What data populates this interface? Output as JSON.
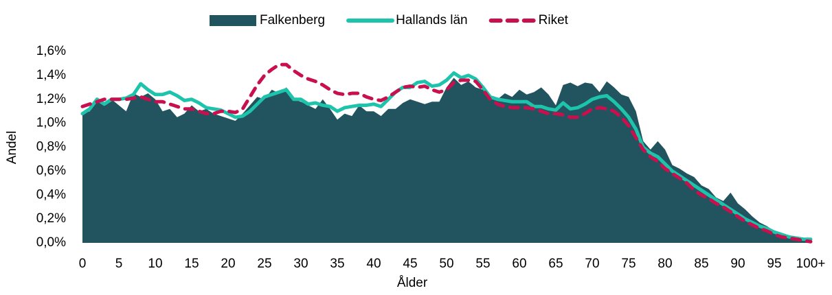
{
  "chart_data": {
    "type": "area",
    "x_label": "Ålder",
    "y_label": "Andel",
    "categories": [
      "0",
      null,
      null,
      null,
      null,
      "5",
      null,
      null,
      null,
      null,
      "10",
      null,
      null,
      null,
      null,
      "15",
      null,
      null,
      null,
      null,
      "20",
      null,
      null,
      null,
      null,
      "25",
      null,
      null,
      null,
      null,
      "30",
      null,
      null,
      null,
      null,
      "35",
      null,
      null,
      null,
      null,
      "40",
      null,
      null,
      null,
      null,
      "45",
      null,
      null,
      null,
      null,
      "50",
      null,
      null,
      null,
      null,
      "55",
      null,
      null,
      null,
      null,
      "60",
      null,
      null,
      null,
      null,
      "65",
      null,
      null,
      null,
      null,
      "70",
      null,
      null,
      null,
      null,
      "75",
      null,
      null,
      null,
      null,
      "80",
      null,
      null,
      null,
      null,
      "85",
      null,
      null,
      null,
      null,
      "90",
      null,
      null,
      null,
      null,
      "95",
      null,
      null,
      null,
      null,
      "100+"
    ],
    "ylim": [
      0,
      1.6
    ],
    "yticks": [
      {
        "value": 0,
        "label": "0,0%"
      },
      {
        "value": 0.2,
        "label": "0,2%"
      },
      {
        "value": 0.4,
        "label": "0,4%"
      },
      {
        "value": 0.6,
        "label": "0,6%"
      },
      {
        "value": 0.8,
        "label": "0,8%"
      },
      {
        "value": 1.0,
        "label": "1,0%"
      },
      {
        "value": 1.2,
        "label": "1,2%"
      },
      {
        "value": 1.4,
        "label": "1,4%"
      },
      {
        "value": 1.6,
        "label": "1,6%"
      }
    ],
    "grid": false,
    "legend": "top",
    "series": [
      {
        "name": "Falkenberg",
        "type": "area",
        "color": "#22545f",
        "values": [
          1.08,
          1.1,
          1.2,
          1.15,
          1.2,
          1.15,
          1.1,
          1.25,
          1.22,
          1.25,
          1.2,
          1.1,
          1.12,
          1.05,
          1.08,
          1.15,
          1.1,
          1.12,
          1.08,
          1.06,
          1.04,
          1.02,
          1.08,
          1.15,
          1.22,
          1.2,
          1.28,
          1.25,
          1.3,
          1.2,
          1.18,
          1.15,
          1.12,
          1.2,
          1.12,
          1.03,
          1.08,
          1.06,
          1.15,
          1.1,
          1.1,
          1.06,
          1.12,
          1.12,
          1.17,
          1.2,
          1.18,
          1.16,
          1.18,
          1.18,
          1.3,
          1.38,
          1.32,
          1.35,
          1.3,
          1.28,
          1.2,
          1.2,
          1.25,
          1.22,
          1.28,
          1.24,
          1.26,
          1.3,
          1.24,
          1.15,
          1.32,
          1.34,
          1.31,
          1.34,
          1.33,
          1.26,
          1.35,
          1.3,
          1.24,
          1.22,
          1.1,
          0.85,
          0.78,
          0.85,
          0.78,
          0.65,
          0.62,
          0.58,
          0.55,
          0.48,
          0.45,
          0.38,
          0.35,
          0.42,
          0.33,
          0.28,
          0.22,
          0.17,
          0.14,
          0.1,
          0.07,
          0.05,
          0.03,
          0.02,
          0.02
        ]
      },
      {
        "name": "Hallands län",
        "type": "line",
        "color": "#1ec3ab",
        "dashed": false,
        "values": [
          1.08,
          1.12,
          1.2,
          1.16,
          1.2,
          1.2,
          1.21,
          1.24,
          1.33,
          1.28,
          1.24,
          1.24,
          1.26,
          1.23,
          1.19,
          1.2,
          1.17,
          1.13,
          1.12,
          1.11,
          1.08,
          1.05,
          1.06,
          1.1,
          1.16,
          1.22,
          1.24,
          1.26,
          1.28,
          1.2,
          1.2,
          1.16,
          1.17,
          1.15,
          1.14,
          1.1,
          1.13,
          1.14,
          1.15,
          1.15,
          1.16,
          1.14,
          1.2,
          1.26,
          1.3,
          1.3,
          1.34,
          1.35,
          1.31,
          1.32,
          1.36,
          1.42,
          1.38,
          1.4,
          1.37,
          1.3,
          1.22,
          1.2,
          1.19,
          1.18,
          1.18,
          1.18,
          1.14,
          1.14,
          1.12,
          1.11,
          1.17,
          1.12,
          1.13,
          1.16,
          1.2,
          1.22,
          1.23,
          1.18,
          1.12,
          1.05,
          0.95,
          0.8,
          0.75,
          0.72,
          0.66,
          0.6,
          0.56,
          0.52,
          0.48,
          0.44,
          0.4,
          0.36,
          0.32,
          0.28,
          0.24,
          0.2,
          0.17,
          0.14,
          0.12,
          0.09,
          0.07,
          0.05,
          0.04,
          0.03,
          0.03
        ]
      },
      {
        "name": "Riket",
        "type": "line",
        "color": "#c8104e",
        "dashed": true,
        "values": [
          1.14,
          1.16,
          1.18,
          1.2,
          1.2,
          1.2,
          1.2,
          1.21,
          1.22,
          1.2,
          1.18,
          1.18,
          1.16,
          1.14,
          1.12,
          1.12,
          1.1,
          1.08,
          1.08,
          1.1,
          1.1,
          1.09,
          1.12,
          1.22,
          1.32,
          1.4,
          1.45,
          1.49,
          1.49,
          1.44,
          1.4,
          1.37,
          1.35,
          1.32,
          1.28,
          1.25,
          1.24,
          1.25,
          1.25,
          1.22,
          1.2,
          1.19,
          1.22,
          1.26,
          1.3,
          1.31,
          1.3,
          1.31,
          1.28,
          1.26,
          1.28,
          1.34,
          1.36,
          1.36,
          1.35,
          1.28,
          1.2,
          1.16,
          1.14,
          1.13,
          1.13,
          1.13,
          1.12,
          1.1,
          1.08,
          1.08,
          1.07,
          1.05,
          1.05,
          1.08,
          1.12,
          1.13,
          1.12,
          1.1,
          1.05,
          0.98,
          0.88,
          0.78,
          0.72,
          0.68,
          0.62,
          0.58,
          0.54,
          0.5,
          0.44,
          0.4,
          0.37,
          0.33,
          0.3,
          0.26,
          0.22,
          0.18,
          0.15,
          0.12,
          0.1,
          0.07,
          0.05,
          0.04,
          0.03,
          0.02,
          0.01
        ]
      }
    ]
  }
}
